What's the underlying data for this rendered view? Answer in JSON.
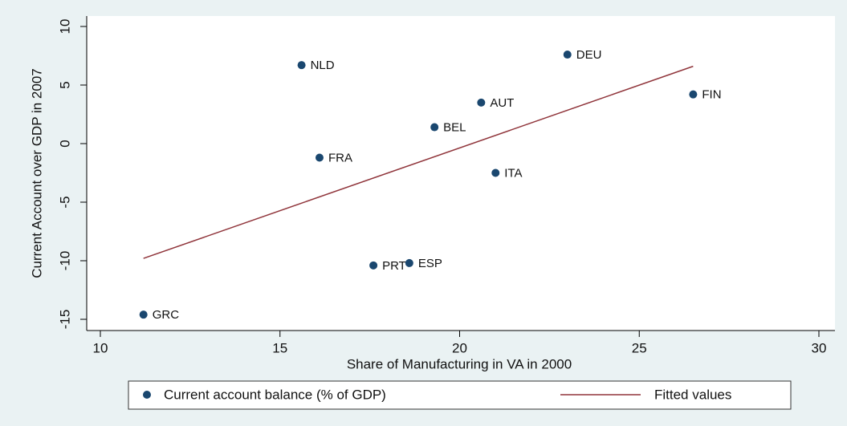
{
  "chart_data": {
    "type": "scatter",
    "xlabel": "Share of Manufacturing in VA in 2000",
    "ylabel": "Current Account over GDP in 2007",
    "xlim": [
      10,
      30
    ],
    "xticks": [
      10,
      15,
      20,
      25,
      30
    ],
    "ylim": [
      -15,
      10
    ],
    "yticks": [
      -15,
      -10,
      -5,
      0,
      5,
      10
    ],
    "grid": false,
    "series": [
      {
        "name": "Current account balance (% of GDP)",
        "type": "scatter",
        "color": "#1a476f",
        "x": [
          11.2,
          15.6,
          23.0,
          26.5,
          20.6,
          19.3,
          16.1,
          21.0,
          17.6,
          18.6
        ],
        "values": [
          -14.6,
          6.7,
          7.6,
          4.2,
          3.5,
          1.4,
          -1.2,
          -2.5,
          -10.4,
          -10.2
        ],
        "point_labels": [
          "GRC",
          "NLD",
          "DEU",
          "FIN",
          "AUT",
          "BEL",
          "FRA",
          "ITA",
          "PRT",
          "ESP"
        ]
      },
      {
        "name": "Fitted values",
        "type": "line",
        "color": "#90353b",
        "x": [
          11.2,
          26.5
        ],
        "values": [
          -9.8,
          6.6
        ]
      }
    ]
  }
}
